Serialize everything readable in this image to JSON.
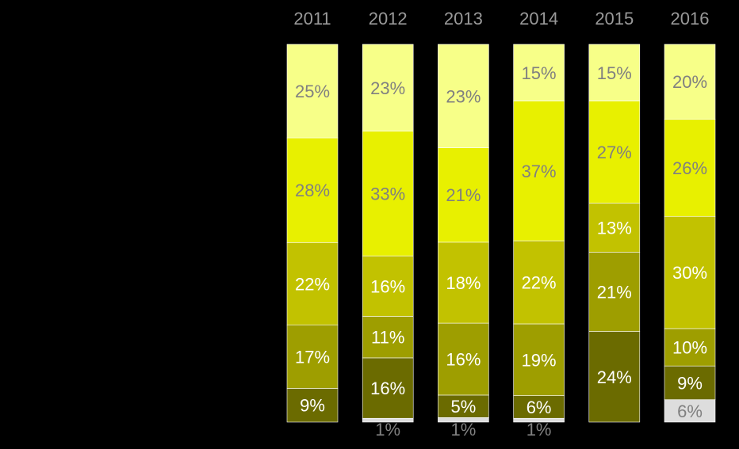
{
  "chart_data": {
    "type": "bar",
    "stacked": true,
    "normalized": true,
    "orientation": "vertical",
    "categories": [
      "2011",
      "2012",
      "2013",
      "2014",
      "2015",
      "2016"
    ],
    "series_bottom_to_top": [
      {
        "color": "#DDDDDD",
        "label_color": "#808080",
        "values": [
          0,
          1,
          1,
          1,
          0,
          6
        ],
        "labels": [
          "",
          "1%",
          "1%",
          "1%",
          "",
          "6%"
        ]
      },
      {
        "color": "#6B6B00",
        "label_color": "#FFFFFF",
        "values": [
          9,
          16,
          5,
          6,
          24,
          9
        ],
        "labels": [
          "9%",
          "16%",
          "5%",
          "6%",
          "24%",
          "9%"
        ]
      },
      {
        "color": "#9E9E00",
        "label_color": "#FFFFFF",
        "values": [
          17,
          11,
          16,
          19,
          21,
          10
        ],
        "labels": [
          "17%",
          "11%",
          "16%",
          "19%",
          "21%",
          "10%"
        ]
      },
      {
        "color": "#C2C200",
        "label_color": "#FFFFFF",
        "values": [
          22,
          16,
          18,
          22,
          13,
          30
        ],
        "labels": [
          "22%",
          "16%",
          "18%",
          "22%",
          "13%",
          "30%"
        ]
      },
      {
        "color": "#E8F000",
        "label_color": "#808080",
        "values": [
          28,
          33,
          21,
          37,
          27,
          26
        ],
        "labels": [
          "28%",
          "33%",
          "21%",
          "37%",
          "27%",
          "26%"
        ]
      },
      {
        "color": "#F7FF88",
        "label_color": "#808080",
        "values": [
          25,
          23,
          23,
          15,
          15,
          20
        ],
        "labels": [
          "25%",
          "23%",
          "23%",
          "15%",
          "15%",
          "20%"
        ]
      }
    ],
    "category_label_color": "#999999",
    "background": "#000000",
    "legend": "none",
    "grid": false
  }
}
